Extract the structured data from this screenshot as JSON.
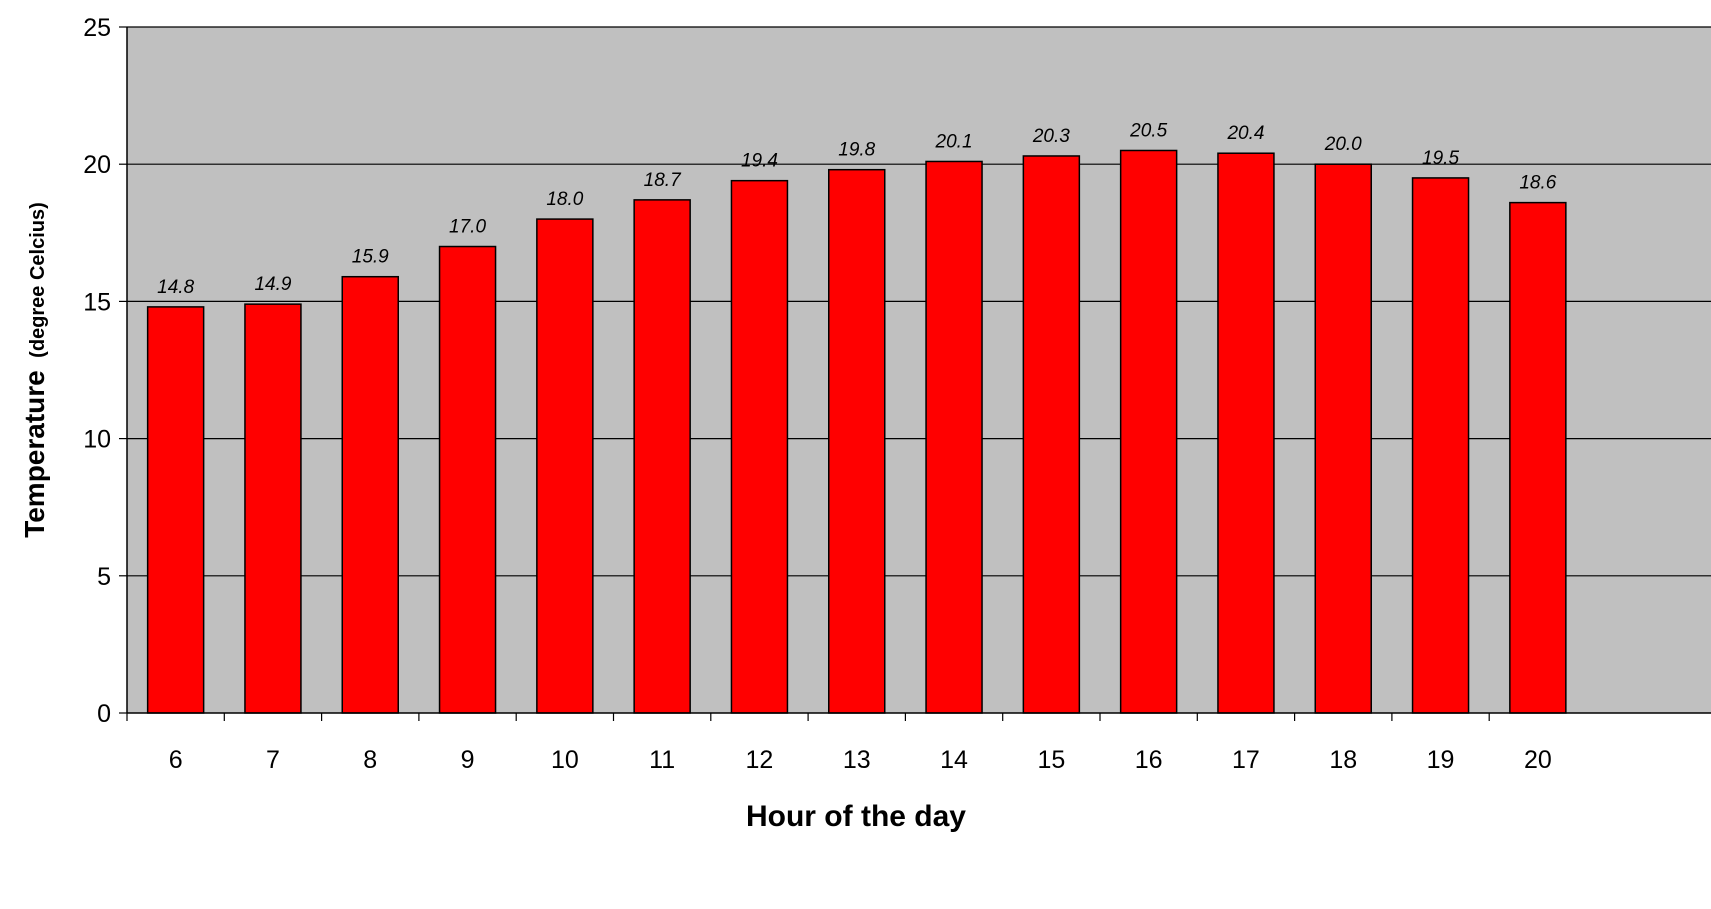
{
  "chart_data": {
    "type": "bar",
    "title": "",
    "xlabel": "Hour of the day",
    "ylabel": "Temperature",
    "ylabel_unit": "(degree Celcius)",
    "categories": [
      "6",
      "7",
      "8",
      "9",
      "10",
      "11",
      "12",
      "13",
      "14",
      "15",
      "16",
      "17",
      "18",
      "19",
      "20"
    ],
    "values": [
      14.8,
      14.9,
      15.9,
      17.0,
      18.0,
      18.7,
      19.4,
      19.8,
      20.1,
      20.3,
      20.5,
      20.4,
      20.0,
      19.5,
      18.6
    ],
    "value_labels": [
      "14.8",
      "14.9",
      "15.9",
      "17.0",
      "18.0",
      "18.7",
      "19.4",
      "19.8",
      "20.1",
      "20.3",
      "20.5",
      "20.4",
      "20.0",
      "19.5",
      "18.6"
    ],
    "ylim": [
      0,
      25
    ],
    "yticks": [
      "0",
      "5",
      "10",
      "15",
      "20",
      "25"
    ],
    "grid": true,
    "legend": "none",
    "colors": {
      "bar": "#ff0000",
      "plot_background": "#c0c0c0",
      "gridline": "#000000"
    }
  }
}
